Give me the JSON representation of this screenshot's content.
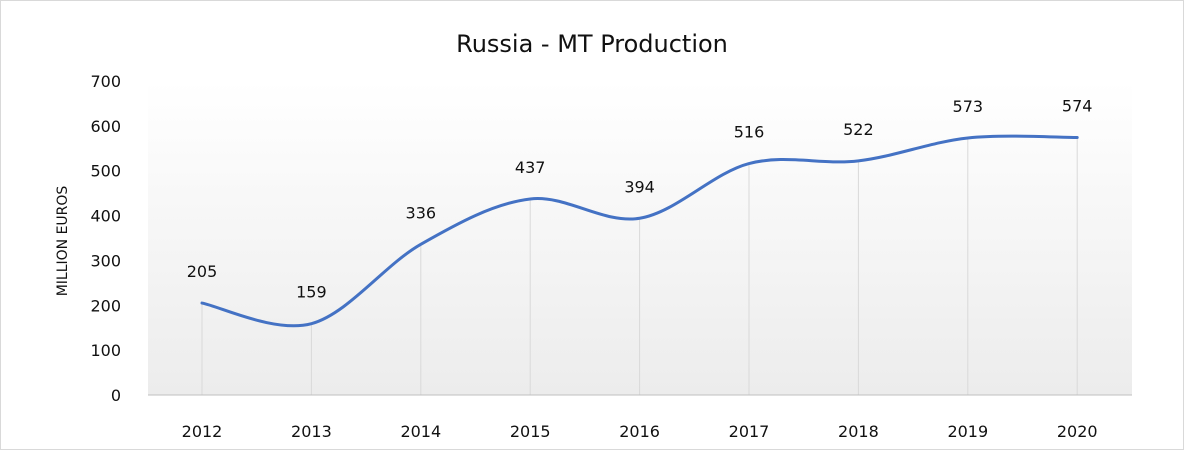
{
  "chart_data": {
    "type": "line",
    "title": "Russia - MT Production",
    "xlabel": "",
    "ylabel": "MILLION EUROS",
    "categories": [
      "2012",
      "2013",
      "2014",
      "2015",
      "2016",
      "2017",
      "2018",
      "2019",
      "2020"
    ],
    "series": [
      {
        "values": [
          205,
          159,
          336,
          437,
          394,
          516,
          522,
          573,
          574
        ]
      }
    ],
    "ylim": [
      0,
      700
    ],
    "yticks": [
      "0",
      "100",
      "200",
      "300",
      "400",
      "500",
      "600",
      "700"
    ],
    "smooth": true,
    "grid": "vertical drop lines at categories",
    "legend": "none",
    "colors": {
      "line": "#4472c4",
      "gridline": "#d9d9d9",
      "axis": "#bfbfbf"
    }
  }
}
